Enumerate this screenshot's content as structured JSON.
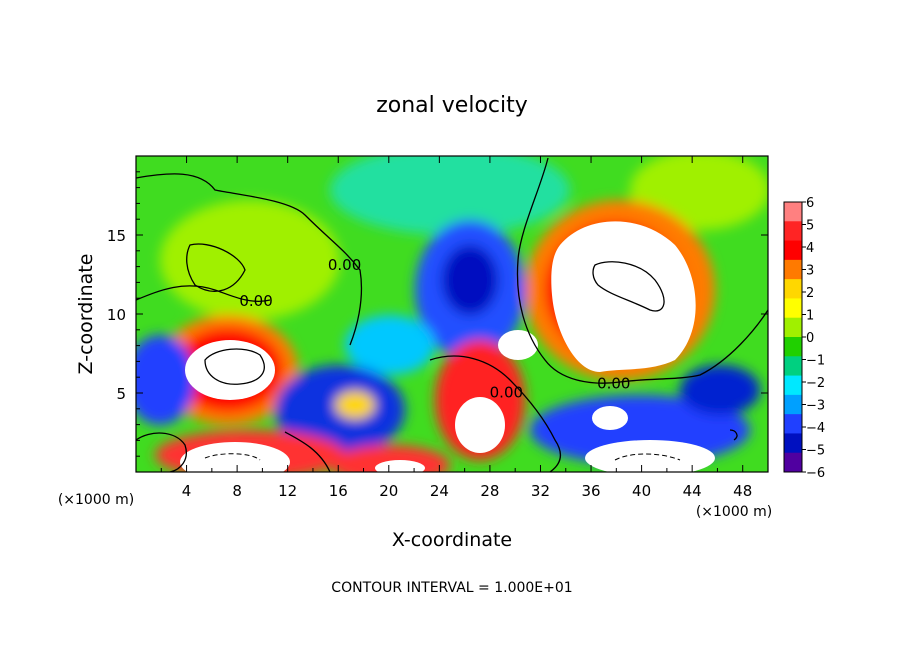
{
  "chart_data": {
    "type": "heatmap",
    "title": "zonal velocity",
    "xlabel": "X-coordinate",
    "ylabel": "Z-coordinate",
    "x_unit_left": "(×1000 m)",
    "x_unit_right": "(×1000 m)",
    "xlim": [
      0,
      50
    ],
    "ylim": [
      0,
      20
    ],
    "xticks": [
      4,
      8,
      12,
      16,
      20,
      24,
      28,
      32,
      36,
      40,
      44,
      48
    ],
    "yticks": [
      5,
      10,
      15
    ],
    "footer": "CONTOUR INTERVAL = 1.000E+01",
    "colorbar": {
      "ticks": [
        6,
        5,
        4,
        3,
        2,
        1,
        0,
        -1,
        -2,
        -3,
        -4,
        -5,
        -6
      ],
      "colors": [
        "#ff8080",
        "#ff2424",
        "#ff0000",
        "#ff7a00",
        "#ffd700",
        "#ffff00",
        "#a0f000",
        "#20d000",
        "#00d080",
        "#00e8ff",
        "#00a0ff",
        "#2040ff",
        "#0010c0",
        "#5000a0"
      ]
    },
    "contour_labels": [
      {
        "text": "0.00",
        "x": 9.5,
        "z": 10.5
      },
      {
        "text": "0.00",
        "x": 16.5,
        "z": 12.8
      },
      {
        "text": "0.00",
        "x": 29.3,
        "z": 4.7
      },
      {
        "text": "0.00",
        "x": 37.8,
        "z": 5.3
      }
    ]
  }
}
